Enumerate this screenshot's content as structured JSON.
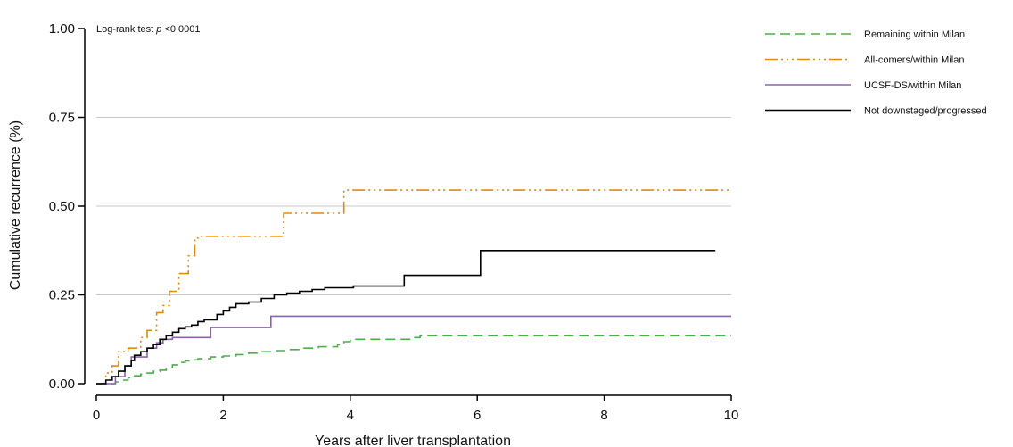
{
  "chart_data": {
    "type": "line",
    "step": true,
    "annotation": {
      "prefix": "Log-rank test ",
      "italic": "p",
      "suffix": " <0.0001"
    },
    "xlabel": "Years after liver transplantation",
    "ylabel": "Cumulative recurrence (%)",
    "xlim": [
      0,
      10
    ],
    "ylim": [
      0,
      1
    ],
    "xticks": [
      0,
      2,
      4,
      6,
      8,
      10
    ],
    "xtick_labels": [
      "0",
      "2",
      "4",
      "6",
      "8",
      "10"
    ],
    "yticks": [
      0,
      0.25,
      0.5,
      0.75,
      1.0
    ],
    "ytick_labels": [
      "0.00",
      "0.25",
      "0.50",
      "0.75",
      "1.00"
    ],
    "grid": "horizontal",
    "legend_position": "right",
    "series": [
      {
        "name": "Remaining within Milan",
        "color": "#4daf4a",
        "dash": "11,6",
        "x": [
          0,
          0.2,
          0.3,
          0.4,
          0.5,
          0.6,
          0.7,
          0.8,
          0.9,
          1.0,
          1.1,
          1.2,
          1.3,
          1.4,
          1.5,
          1.6,
          1.8,
          2.0,
          2.2,
          2.4,
          2.6,
          2.8,
          3.0,
          3.2,
          3.5,
          3.8,
          3.9,
          4.0,
          5.0,
          5.1,
          10.0
        ],
        "y": [
          0,
          0.0,
          0.005,
          0.01,
          0.017,
          0.022,
          0.027,
          0.03,
          0.035,
          0.038,
          0.045,
          0.053,
          0.06,
          0.064,
          0.067,
          0.07,
          0.075,
          0.078,
          0.082,
          0.086,
          0.09,
          0.093,
          0.096,
          0.1,
          0.104,
          0.11,
          0.118,
          0.125,
          0.13,
          0.135,
          0.135
        ]
      },
      {
        "name": "All-comers/within Milan",
        "color": "#e08a12",
        "dash": "14,4,2,4,2,4,2,4",
        "x": [
          0,
          0.15,
          0.25,
          0.35,
          0.5,
          0.7,
          0.8,
          0.95,
          1.05,
          1.15,
          1.3,
          1.45,
          1.55,
          1.65,
          2.25,
          2.95,
          3.15,
          3.9,
          10.0
        ],
        "y": [
          0,
          0.03,
          0.05,
          0.09,
          0.1,
          0.13,
          0.15,
          0.2,
          0.22,
          0.26,
          0.31,
          0.36,
          0.41,
          0.415,
          0.415,
          0.48,
          0.48,
          0.545,
          0.545
        ]
      },
      {
        "name": "UCSF-DS/within Milan",
        "color": "#8e63ad",
        "dash": "",
        "x": [
          0,
          0.3,
          0.45,
          0.55,
          0.8,
          0.95,
          1.05,
          1.2,
          1.8,
          2.75,
          10.0
        ],
        "y": [
          0,
          0.02,
          0.05,
          0.075,
          0.1,
          0.115,
          0.125,
          0.13,
          0.158,
          0.19,
          0.19
        ]
      },
      {
        "name": "Not downstaged/progressed",
        "color": "#000000",
        "dash": "",
        "x": [
          0,
          0.15,
          0.25,
          0.35,
          0.45,
          0.55,
          0.6,
          0.7,
          0.8,
          0.9,
          1.0,
          1.1,
          1.2,
          1.3,
          1.4,
          1.5,
          1.6,
          1.7,
          1.9,
          2.0,
          2.1,
          2.2,
          2.4,
          2.6,
          2.8,
          3.0,
          3.2,
          3.4,
          3.6,
          4.05,
          4.85,
          6.05,
          9.75
        ],
        "y": [
          0,
          0.01,
          0.02,
          0.035,
          0.05,
          0.065,
          0.08,
          0.09,
          0.1,
          0.11,
          0.125,
          0.135,
          0.145,
          0.155,
          0.16,
          0.165,
          0.175,
          0.18,
          0.195,
          0.205,
          0.215,
          0.225,
          0.23,
          0.24,
          0.25,
          0.255,
          0.26,
          0.265,
          0.27,
          0.275,
          0.305,
          0.375,
          0.375
        ]
      }
    ]
  }
}
